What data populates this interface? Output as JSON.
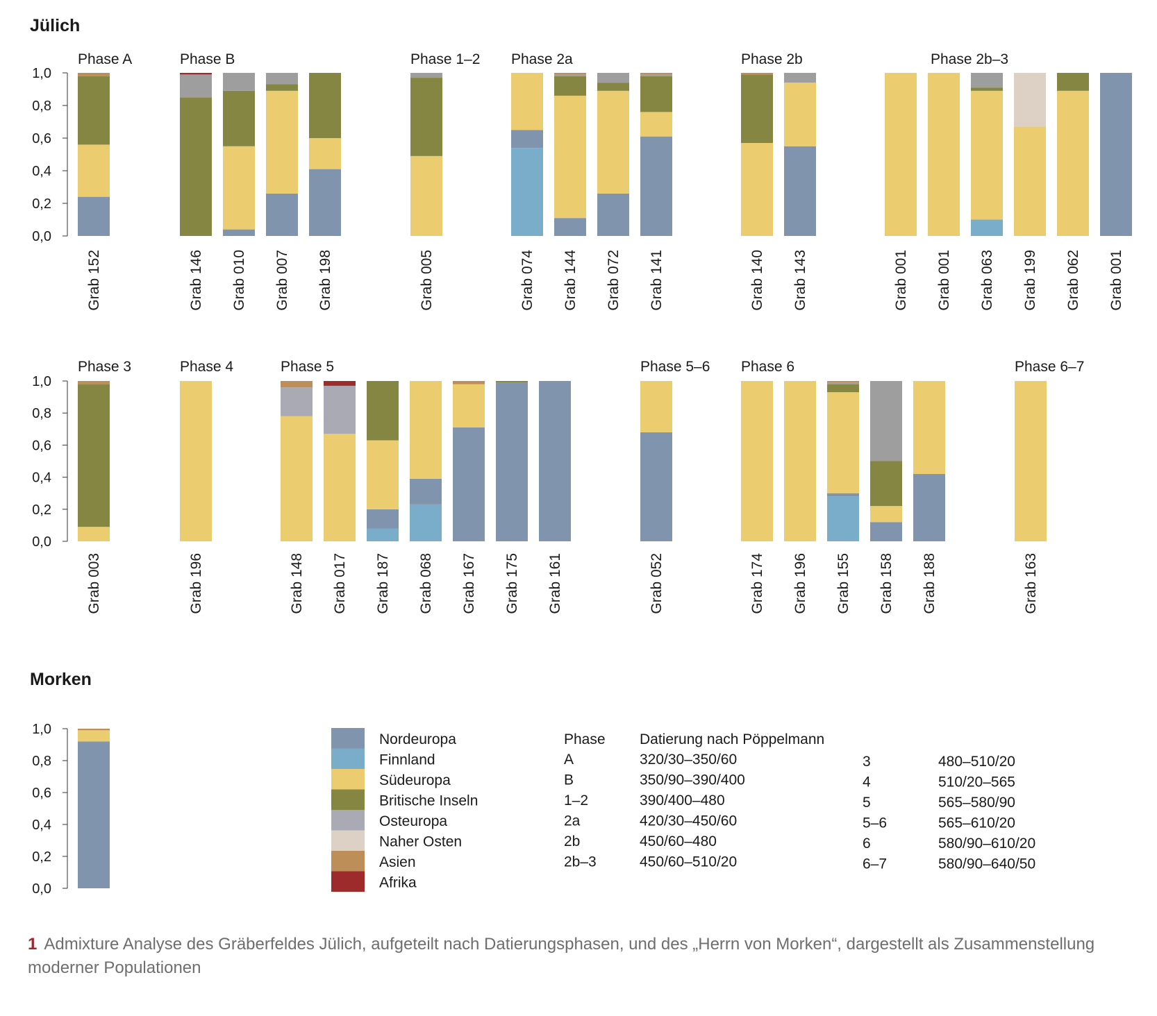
{
  "colors": {
    "Nordeuropa": "#8095ad",
    "Finnland": "#79adc9",
    "Südeuropa": "#ebcd6f",
    "Britische Inseln": "#848641",
    "Osteuropa": "#a9aab4",
    "Naher Osten": "#ddd1c6",
    "Asien": "#bd8e57",
    "Afrika": "#9d2b2c",
    "Grau": "#9e9e9e"
  },
  "y_ticks": [
    "0,0",
    "0,2",
    "0,4",
    "0,6",
    "0,8",
    "1,0"
  ],
  "chart_data": [
    {
      "type": "bar",
      "stacked": true,
      "title": "Jülich",
      "ylim": [
        0,
        1
      ],
      "groups": [
        {
          "phase": "Phase A",
          "bars": [
            {
              "label": "Grab 152",
              "segments": [
                {
                  "c": "Nordeuropa",
                  "v": 0.24
                },
                {
                  "c": "Südeuropa",
                  "v": 0.32
                },
                {
                  "c": "Britische Inseln",
                  "v": 0.42
                },
                {
                  "c": "Asien",
                  "v": 0.02
                }
              ]
            }
          ]
        },
        {
          "phase": "Phase B",
          "bars": [
            {
              "label": "Grab 146",
              "segments": [
                {
                  "c": "Britische Inseln",
                  "v": 0.85
                },
                {
                  "c": "Grau",
                  "v": 0.14
                },
                {
                  "c": "Afrika",
                  "v": 0.01
                }
              ]
            },
            {
              "label": "Grab 010",
              "segments": [
                {
                  "c": "Nordeuropa",
                  "v": 0.04
                },
                {
                  "c": "Südeuropa",
                  "v": 0.51
                },
                {
                  "c": "Britische Inseln",
                  "v": 0.34
                },
                {
                  "c": "Grau",
                  "v": 0.11
                }
              ]
            },
            {
              "label": "Grab 007",
              "segments": [
                {
                  "c": "Nordeuropa",
                  "v": 0.26
                },
                {
                  "c": "Südeuropa",
                  "v": 0.63
                },
                {
                  "c": "Britische Inseln",
                  "v": 0.04
                },
                {
                  "c": "Grau",
                  "v": 0.07
                }
              ]
            },
            {
              "label": "Grab 198",
              "segments": [
                {
                  "c": "Nordeuropa",
                  "v": 0.41
                },
                {
                  "c": "Südeuropa",
                  "v": 0.19
                },
                {
                  "c": "Britische Inseln",
                  "v": 0.4
                }
              ]
            }
          ]
        },
        {
          "phase": "Phase 1–2",
          "bars": [
            {
              "label": "Grab 005",
              "segments": [
                {
                  "c": "Südeuropa",
                  "v": 0.49
                },
                {
                  "c": "Britische Inseln",
                  "v": 0.48
                },
                {
                  "c": "Grau",
                  "v": 0.03
                }
              ]
            }
          ]
        },
        {
          "phase": "Phase 2a",
          "bars": [
            {
              "label": "Grab 074",
              "segments": [
                {
                  "c": "Finnland",
                  "v": 0.54
                },
                {
                  "c": "Nordeuropa",
                  "v": 0.11
                },
                {
                  "c": "Südeuropa",
                  "v": 0.35
                }
              ]
            },
            {
              "label": "Grab 144",
              "segments": [
                {
                  "c": "Nordeuropa",
                  "v": 0.11
                },
                {
                  "c": "Südeuropa",
                  "v": 0.75
                },
                {
                  "c": "Britische Inseln",
                  "v": 0.12
                },
                {
                  "c": "Grau",
                  "v": 0.01
                },
                {
                  "c": "Asien",
                  "v": 0.01
                }
              ]
            },
            {
              "label": "Grab 072",
              "segments": [
                {
                  "c": "Nordeuropa",
                  "v": 0.26
                },
                {
                  "c": "Südeuropa",
                  "v": 0.63
                },
                {
                  "c": "Britische Inseln",
                  "v": 0.05
                },
                {
                  "c": "Grau",
                  "v": 0.06
                }
              ]
            },
            {
              "label": "Grab 141",
              "segments": [
                {
                  "c": "Nordeuropa",
                  "v": 0.61
                },
                {
                  "c": "Südeuropa",
                  "v": 0.15
                },
                {
                  "c": "Britische Inseln",
                  "v": 0.22
                },
                {
                  "c": "Grau",
                  "v": 0.01
                },
                {
                  "c": "Asien",
                  "v": 0.01
                }
              ]
            }
          ]
        },
        {
          "phase": "Phase 2b",
          "bars": [
            {
              "label": "Grab 140",
              "segments": [
                {
                  "c": "Südeuropa",
                  "v": 0.57
                },
                {
                  "c": "Britische Inseln",
                  "v": 0.42
                },
                {
                  "c": "Asien",
                  "v": 0.01
                }
              ]
            },
            {
              "label": "Grab 143",
              "segments": [
                {
                  "c": "Nordeuropa",
                  "v": 0.55
                },
                {
                  "c": "Südeuropa",
                  "v": 0.39
                },
                {
                  "c": "Grau",
                  "v": 0.06
                }
              ]
            }
          ]
        },
        {
          "phase": "Phase 2b–3",
          "bars": [
            {
              "label": "Grab 001",
              "segments": [
                {
                  "c": "Südeuropa",
                  "v": 1.0
                }
              ]
            },
            {
              "label": "Grab 001",
              "segments": [
                {
                  "c": "Südeuropa",
                  "v": 1.0
                }
              ]
            },
            {
              "label": "Grab 063",
              "segments": [
                {
                  "c": "Finnland",
                  "v": 0.1
                },
                {
                  "c": "Südeuropa",
                  "v": 0.79
                },
                {
                  "c": "Britische Inseln",
                  "v": 0.02
                },
                {
                  "c": "Grau",
                  "v": 0.09
                }
              ]
            },
            {
              "label": "Grab 199",
              "segments": [
                {
                  "c": "Südeuropa",
                  "v": 0.67
                },
                {
                  "c": "Naher Osten",
                  "v": 0.33
                }
              ]
            },
            {
              "label": "Grab 062",
              "segments": [
                {
                  "c": "Südeuropa",
                  "v": 0.89
                },
                {
                  "c": "Britische Inseln",
                  "v": 0.11
                }
              ]
            },
            {
              "label": "Grab 001",
              "segments": [
                {
                  "c": "Nordeuropa",
                  "v": 1.0
                }
              ]
            }
          ]
        },
        {
          "phase": "Phase 3",
          "bars": [
            {
              "label": "Grab 003",
              "segments": [
                {
                  "c": "Südeuropa",
                  "v": 0.09
                },
                {
                  "c": "Britische Inseln",
                  "v": 0.89
                },
                {
                  "c": "Asien",
                  "v": 0.02
                }
              ]
            }
          ]
        },
        {
          "phase": "Phase 4",
          "bars": [
            {
              "label": "Grab 196",
              "segments": [
                {
                  "c": "Südeuropa",
                  "v": 1.0
                }
              ]
            }
          ]
        },
        {
          "phase": "Phase 5",
          "bars": [
            {
              "label": "Grab 148",
              "segments": [
                {
                  "c": "Südeuropa",
                  "v": 0.78
                },
                {
                  "c": "Osteuropa",
                  "v": 0.18
                },
                {
                  "c": "Asien",
                  "v": 0.04
                }
              ]
            },
            {
              "label": "Grab 017",
              "segments": [
                {
                  "c": "Südeuropa",
                  "v": 0.67
                },
                {
                  "c": "Osteuropa",
                  "v": 0.3
                },
                {
                  "c": "Afrika",
                  "v": 0.03
                }
              ]
            },
            {
              "label": "Grab 187",
              "segments": [
                {
                  "c": "Finnland",
                  "v": 0.08
                },
                {
                  "c": "Nordeuropa",
                  "v": 0.12
                },
                {
                  "c": "Südeuropa",
                  "v": 0.43
                },
                {
                  "c": "Britische Inseln",
                  "v": 0.37
                }
              ]
            },
            {
              "label": "Grab 068",
              "segments": [
                {
                  "c": "Finnland",
                  "v": 0.23
                },
                {
                  "c": "Nordeuropa",
                  "v": 0.16
                },
                {
                  "c": "Südeuropa",
                  "v": 0.61
                }
              ]
            },
            {
              "label": "Grab 167",
              "segments": [
                {
                  "c": "Nordeuropa",
                  "v": 0.71
                },
                {
                  "c": "Südeuropa",
                  "v": 0.27
                },
                {
                  "c": "Asien",
                  "v": 0.02
                }
              ]
            },
            {
              "label": "Grab 175",
              "segments": [
                {
                  "c": "Nordeuropa",
                  "v": 0.99
                },
                {
                  "c": "Britische Inseln",
                  "v": 0.01
                }
              ]
            },
            {
              "label": "Grab 161",
              "segments": [
                {
                  "c": "Nordeuropa",
                  "v": 1.0
                }
              ]
            }
          ]
        },
        {
          "phase": "Phase 5–6",
          "bars": [
            {
              "label": "Grab 052",
              "segments": [
                {
                  "c": "Nordeuropa",
                  "v": 0.68
                },
                {
                  "c": "Südeuropa",
                  "v": 0.32
                }
              ]
            }
          ]
        },
        {
          "phase": "Phase 6",
          "bars": [
            {
              "label": "Grab 174",
              "segments": [
                {
                  "c": "Südeuropa",
                  "v": 1.0
                }
              ]
            },
            {
              "label": "Grab 196",
              "segments": [
                {
                  "c": "Südeuropa",
                  "v": 1.0
                }
              ]
            },
            {
              "label": "Grab 155",
              "segments": [
                {
                  "c": "Finnland",
                  "v": 0.28
                },
                {
                  "c": "Nordeuropa",
                  "v": 0.02
                },
                {
                  "c": "Südeuropa",
                  "v": 0.63
                },
                {
                  "c": "Britische Inseln",
                  "v": 0.05
                },
                {
                  "c": "Grau",
                  "v": 0.01
                },
                {
                  "c": "Asien",
                  "v": 0.01
                }
              ]
            },
            {
              "label": "Grab 158",
              "segments": [
                {
                  "c": "Nordeuropa",
                  "v": 0.12
                },
                {
                  "c": "Südeuropa",
                  "v": 0.1
                },
                {
                  "c": "Britische Inseln",
                  "v": 0.28
                },
                {
                  "c": "Grau",
                  "v": 0.5
                }
              ]
            },
            {
              "label": "Grab 188",
              "segments": [
                {
                  "c": "Nordeuropa",
                  "v": 0.42
                },
                {
                  "c": "Südeuropa",
                  "v": 0.58
                }
              ]
            }
          ]
        },
        {
          "phase": "Phase 6–7",
          "bars": [
            {
              "label": "Grab 163",
              "segments": [
                {
                  "c": "Südeuropa",
                  "v": 1.0
                }
              ]
            }
          ]
        }
      ]
    },
    {
      "type": "bar",
      "stacked": true,
      "title": "Morken",
      "ylim": [
        0,
        1
      ],
      "bars": [
        {
          "label": "",
          "segments": [
            {
              "c": "Nordeuropa",
              "v": 0.92
            },
            {
              "c": "Südeuropa",
              "v": 0.07
            },
            {
              "c": "Asien",
              "v": 0.01
            }
          ]
        }
      ]
    }
  ],
  "legend": {
    "items": [
      "Nordeuropa",
      "Finnland",
      "Südeuropa",
      "Britische Inseln",
      "Osteuropa",
      "Naher Osten",
      "Asien",
      "Afrika"
    ]
  },
  "dating": {
    "header_phase": "Phase",
    "header_date": "Datierung nach Pöppelmann",
    "left": [
      {
        "phase": "A",
        "date": "320/30–350/60"
      },
      {
        "phase": "B",
        "date": "350/90–390/400"
      },
      {
        "phase": "1–2",
        "date": "390/400–480"
      },
      {
        "phase": "2a",
        "date": "420/30–450/60"
      },
      {
        "phase": "2b",
        "date": "450/60–480"
      },
      {
        "phase": "2b–3",
        "date": "450/60–510/20"
      }
    ],
    "right": [
      {
        "phase": "3",
        "date": "480–510/20"
      },
      {
        "phase": "4",
        "date": "510/20–565"
      },
      {
        "phase": "5",
        "date": "565–580/90"
      },
      {
        "phase": "5–6",
        "date": "565–610/20"
      },
      {
        "phase": "6",
        "date": "580/90–610/20"
      },
      {
        "phase": "6–7",
        "date": "580/90–640/50"
      }
    ]
  },
  "caption": {
    "number": "1",
    "text": "Admixture Analyse des Gräberfeldes Jülich, aufgeteilt nach Datierungsphasen, und des „Herrn von Morken“, dargestellt als Zusammenstellung moderner Populationen"
  }
}
